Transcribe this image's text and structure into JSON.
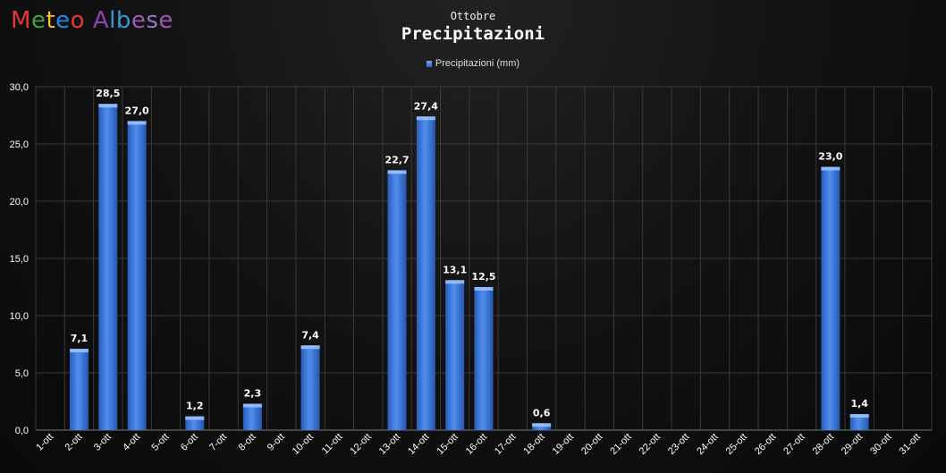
{
  "logo": {
    "letters": [
      "M",
      "e",
      "t",
      "e",
      "o",
      " ",
      "A",
      "l",
      "b",
      "e",
      "s",
      "e"
    ],
    "colors": [
      "#e53935",
      "#43a047",
      "#fbc02d",
      "#1e88e5",
      "#e53935",
      "#ffffff",
      "#8e44ad",
      "#3498db",
      "#3498db",
      "#9b59b6",
      "#8e7cc3",
      "#9b59b6"
    ]
  },
  "header": {
    "subtitle": "Ottobre",
    "title": "Precipitazioni"
  },
  "colors": {
    "bar_top": "#6fa8ff",
    "bar_bottom": "#2d62c4",
    "grid": "#3a3a3a",
    "axis_text": "#ffffff"
  },
  "chart_data": {
    "type": "bar",
    "title": "Precipitazioni",
    "subtitle": "Ottobre",
    "xlabel": "",
    "ylabel": "",
    "ylim": [
      0,
      30
    ],
    "yticks": [
      "0,0",
      "5,0",
      "10,0",
      "15,0",
      "20,0",
      "25,0",
      "30,0"
    ],
    "grid": true,
    "legend_position": "top-center",
    "categories": [
      "1-ott",
      "2-ott",
      "3-ott",
      "4-ott",
      "5-ott",
      "6-ott",
      "7-ott",
      "8-ott",
      "9-ott",
      "10-ott",
      "11-ott",
      "12-ott",
      "13-ott",
      "14-ott",
      "15-ott",
      "16-ott",
      "17-ott",
      "18-ott",
      "19-ott",
      "20-ott",
      "21-ott",
      "22-ott",
      "23-ott",
      "24-ott",
      "25-ott",
      "26-ott",
      "27-ott",
      "28-ott",
      "29-ott",
      "30-ott",
      "31-ott"
    ],
    "series": [
      {
        "name": "Precipitazioni (mm)",
        "values": [
          0,
          7.1,
          28.5,
          27.0,
          0,
          1.2,
          0,
          2.3,
          0,
          7.4,
          0,
          0,
          22.7,
          27.4,
          13.1,
          12.5,
          0,
          0.6,
          0,
          0,
          0,
          0,
          0,
          0,
          0,
          0,
          0,
          23.0,
          1.4,
          0,
          0
        ],
        "labels": [
          "",
          "7,1",
          "28,5",
          "27,0",
          "",
          "1,2",
          "",
          "2,3",
          "",
          "7,4",
          "",
          "",
          "22,7",
          "27,4",
          "13,1",
          "12,5",
          "",
          "0,6",
          "",
          "",
          "",
          "",
          "",
          "",
          "",
          "",
          "",
          "23,0",
          "1,4",
          "",
          ""
        ]
      }
    ]
  }
}
